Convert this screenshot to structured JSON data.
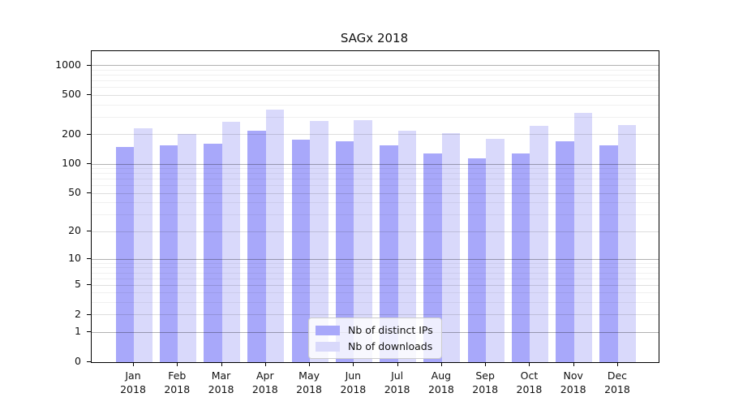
{
  "chart_data": {
    "type": "bar",
    "title": "SAGx 2018",
    "categories": [
      "Jan\n2018",
      "Feb\n2018",
      "Mar\n2018",
      "Apr\n2018",
      "May\n2018",
      "Jun\n2018",
      "Jul\n2018",
      "Aug\n2018",
      "Sep\n2018",
      "Oct\n2018",
      "Nov\n2018",
      "Dec\n2018"
    ],
    "series": [
      {
        "name": "Nb of distinct IPs",
        "color": "#a8a8fa",
        "values": [
          148,
          155,
          161,
          220,
          178,
          172,
          156,
          128,
          115,
          128,
          172,
          156
        ]
      },
      {
        "name": "Nb of downloads",
        "color": "#d9d9fb",
        "values": [
          232,
          203,
          267,
          361,
          276,
          280,
          220,
          207,
          180,
          247,
          329,
          250
        ]
      }
    ],
    "xlabel": "",
    "ylabel": "",
    "yscale": "log1p",
    "ylim": [
      0,
      1400
    ],
    "yticks": [
      0,
      1,
      2,
      5,
      10,
      20,
      50,
      100,
      200,
      500,
      1000
    ],
    "grid": "both",
    "legend_position": "lower center"
  }
}
